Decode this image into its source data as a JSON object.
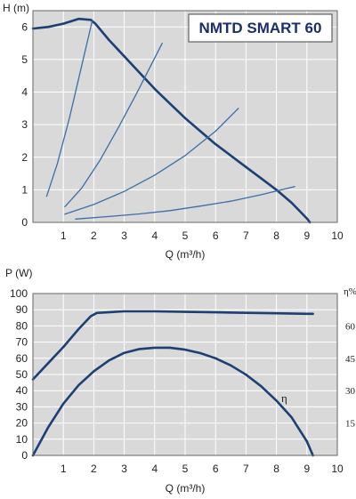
{
  "chart_data": [
    {
      "type": "line",
      "title": "NMTD SMART 60",
      "ylabel": "H (m)",
      "xlabel": "Q (m³/h)",
      "xlim": [
        0,
        10
      ],
      "ylim": [
        0,
        6.5
      ],
      "x_ticks": [
        "1",
        "2",
        "3",
        "4",
        "5",
        "6",
        "7",
        "8",
        "9",
        "10"
      ],
      "y_ticks": [
        "0",
        "1",
        "2",
        "3",
        "4",
        "5",
        "6"
      ],
      "grid": true,
      "series": [
        {
          "role": "max-curve",
          "x": [
            0,
            0.5,
            1.0,
            1.5,
            1.9,
            2.05,
            2.5,
            3.0,
            3.5,
            4.0,
            4.5,
            5.0,
            5.5,
            6.0,
            6.5,
            7.0,
            7.5,
            8.0,
            8.5,
            9.0,
            9.1
          ],
          "y": [
            5.95,
            6.0,
            6.1,
            6.25,
            6.22,
            6.1,
            5.6,
            5.1,
            4.6,
            4.1,
            3.65,
            3.2,
            2.8,
            2.4,
            2.05,
            1.7,
            1.35,
            1.0,
            0.6,
            0.12,
            0.0
          ]
        },
        {
          "role": "system-curve",
          "x": [
            0.45,
            0.8,
            1.2,
            1.6,
            1.95
          ],
          "y": [
            0.8,
            1.8,
            3.2,
            4.8,
            6.2
          ]
        },
        {
          "role": "system-curve",
          "x": [
            1.05,
            1.6,
            2.2,
            2.8,
            3.4,
            4.25
          ],
          "y": [
            0.48,
            1.05,
            1.9,
            2.9,
            3.95,
            5.5
          ]
        },
        {
          "role": "system-curve",
          "x": [
            1.05,
            2.0,
            3.0,
            4.0,
            5.0,
            6.0,
            6.75
          ],
          "y": [
            0.25,
            0.55,
            0.95,
            1.45,
            2.05,
            2.8,
            3.5
          ]
        },
        {
          "role": "system-curve",
          "x": [
            1.4,
            2.5,
            3.5,
            4.5,
            5.5,
            6.5,
            7.5,
            8.6
          ],
          "y": [
            0.1,
            0.18,
            0.26,
            0.36,
            0.5,
            0.65,
            0.85,
            1.1
          ]
        }
      ]
    },
    {
      "type": "line",
      "ylabel": "P (W)",
      "xlabel": "Q (m³/h)",
      "xlim": [
        0,
        10
      ],
      "ylim": [
        0,
        100
      ],
      "x_ticks": [
        "1",
        "2",
        "3",
        "4",
        "5",
        "6",
        "7",
        "8",
        "9",
        "10"
      ],
      "y_ticks": [
        "0",
        "10",
        "20",
        "30",
        "40",
        "50",
        "60",
        "70",
        "80",
        "90",
        "100"
      ],
      "y2_label": "η%",
      "y2_ticks": [
        "15",
        "30",
        "45",
        "60"
      ],
      "y2lim": [
        0,
        75
      ],
      "grid": true,
      "series": [
        {
          "role": "power",
          "x": [
            0,
            0.5,
            1.0,
            1.5,
            1.9,
            2.1,
            3.0,
            4.0,
            5.0,
            6.0,
            7.0,
            8.0,
            9.0,
            9.2
          ],
          "y": [
            47,
            57,
            67,
            78,
            86,
            88,
            89,
            89,
            88.7,
            88.4,
            88.1,
            87.8,
            87.5,
            87.5
          ]
        },
        {
          "name": "η",
          "axis": "right",
          "x": [
            0,
            0.5,
            1.0,
            1.5,
            2.0,
            2.5,
            3.0,
            3.5,
            4.0,
            4.5,
            5.0,
            5.5,
            6.0,
            6.5,
            7.0,
            7.5,
            8.0,
            8.5,
            9.0,
            9.2
          ],
          "y": [
            0,
            13,
            24,
            32.5,
            39,
            44,
            47.5,
            49.3,
            49.9,
            49.9,
            49,
            47.4,
            45,
            41.7,
            37.4,
            32,
            25.4,
            17.6,
            6.5,
            0
          ]
        }
      ]
    }
  ]
}
